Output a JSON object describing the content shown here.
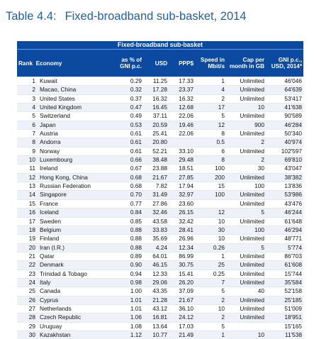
{
  "title": {
    "label": "Table 4.4:",
    "text": "Fixed-broadband sub-basket, 2014"
  },
  "table": {
    "caption": "Fixed-broadband sub-basket",
    "headers": {
      "rank": "Rank",
      "economy": "Economy",
      "gni_pct": "as % of GNI p.c.",
      "usd": "USD",
      "ppp": "PPP$",
      "speed": "Speed in Mbit/s",
      "cap": "Cap per month in GB",
      "gni_pc": "GNI p.c., USD, 2014*"
    },
    "rows": [
      {
        "rank": "1",
        "economy": "Kuwait",
        "gni": "0.29",
        "usd": "11.25",
        "ppp": "17.33",
        "speed": "1",
        "cap": "Unlimited",
        "gnipc": "46'046"
      },
      {
        "rank": "2",
        "economy": "Macao, China",
        "gni": "0.32",
        "usd": "17.28",
        "ppp": "23.37",
        "speed": "4",
        "cap": "Unlimited",
        "gnipc": "64'639"
      },
      {
        "rank": "3",
        "economy": "United States",
        "gni": "0.37",
        "usd": "16.32",
        "ppp": "16.32",
        "speed": "2",
        "cap": "Unlimited",
        "gnipc": "53'417"
      },
      {
        "rank": "4",
        "economy": "United Kingdom",
        "gni": "0.47",
        "usd": "16.45",
        "ppp": "12.68",
        "speed": "17",
        "cap": "10",
        "gnipc": "41'638"
      },
      {
        "rank": "5",
        "economy": "Switzerland",
        "gni": "0.49",
        "usd": "37.11",
        "ppp": "22.06",
        "speed": "5",
        "cap": "Unlimited",
        "gnipc": "90'589"
      },
      {
        "rank": "6",
        "economy": "Japan",
        "gni": "0.53",
        "usd": "20.59",
        "ppp": "19.46",
        "speed": "12",
        "cap": "900",
        "gnipc": "46'284"
      },
      {
        "rank": "7",
        "economy": "Austria",
        "gni": "0.61",
        "usd": "25.41",
        "ppp": "22.06",
        "speed": "8",
        "cap": "Unlimited",
        "gnipc": "50'340"
      },
      {
        "rank": "8",
        "economy": "Andorra",
        "gni": "0.61",
        "usd": "20.80",
        "ppp": "",
        "speed": "0.5",
        "cap": "2",
        "gnipc": "40'974"
      },
      {
        "rank": "9",
        "economy": "Norway",
        "gni": "0.61",
        "usd": "52.21",
        "ppp": "33.10",
        "speed": "6",
        "cap": "Unlimited",
        "gnipc": "102'597"
      },
      {
        "rank": "10",
        "economy": "Luxembourg",
        "gni": "0.66",
        "usd": "38.48",
        "ppp": "29.48",
        "speed": "8",
        "cap": "2",
        "gnipc": "69'810"
      },
      {
        "rank": "11",
        "economy": "Ireland",
        "gni": "0.67",
        "usd": "23.88",
        "ppp": "18.51",
        "speed": "100",
        "cap": "30",
        "gnipc": "43'047"
      },
      {
        "rank": "12",
        "economy": "Hong Kong, China",
        "gni": "0.68",
        "usd": "21.67",
        "ppp": "27.85",
        "speed": "200",
        "cap": "Unlimited",
        "gnipc": "38'382"
      },
      {
        "rank": "13",
        "economy": "Russian Federation",
        "gni": "0.68",
        "usd": "7.82",
        "ppp": "17.94",
        "speed": "15",
        "cap": "100",
        "gnipc": "13'836"
      },
      {
        "rank": "14",
        "economy": "Singapore",
        "gni": "0.70",
        "usd": "31.49",
        "ppp": "32.97",
        "speed": "100",
        "cap": "Unlimited",
        "gnipc": "53'986"
      },
      {
        "rank": "15",
        "economy": "France",
        "gni": "0.77",
        "usd": "27.86",
        "ppp": "23.60",
        "speed": "",
        "cap": "Unlimited",
        "gnipc": "43'476"
      },
      {
        "rank": "16",
        "economy": "Iceland",
        "gni": "0.84",
        "usd": "32.46",
        "ppp": "26.15",
        "speed": "12",
        "cap": "5",
        "gnipc": "46'244"
      },
      {
        "rank": "17",
        "economy": "Sweden",
        "gni": "0.85",
        "usd": "43.58",
        "ppp": "32.42",
        "speed": "10",
        "cap": "Unlimited",
        "gnipc": "61'648"
      },
      {
        "rank": "18",
        "economy": "Belgium",
        "gni": "0.88",
        "usd": "33.83",
        "ppp": "28.41",
        "speed": "30",
        "cap": "100",
        "gnipc": "46'294"
      },
      {
        "rank": "19",
        "economy": "Finland",
        "gni": "0.88",
        "usd": "35.69",
        "ppp": "26.96",
        "speed": "10",
        "cap": "Unlimited",
        "gnipc": "48'771"
      },
      {
        "rank": "20",
        "economy": "Iran (I.R.)",
        "gni": "0.88",
        "usd": "4.24",
        "ppp": "12.34",
        "speed": "0.26",
        "cap": "5",
        "gnipc": "5'774"
      },
      {
        "rank": "21",
        "economy": "Qatar",
        "gni": "0.89",
        "usd": "64.01",
        "ppp": "86.99",
        "speed": "1",
        "cap": "Unlimited",
        "gnipc": "86'703"
      },
      {
        "rank": "22",
        "economy": "Denmark",
        "gni": "0.90",
        "usd": "46.15",
        "ppp": "30.75",
        "speed": "25",
        "cap": "Unlimited",
        "gnipc": "61'608"
      },
      {
        "rank": "23",
        "economy": "Trinidad & Tobago",
        "gni": "0.94",
        "usd": "12.33",
        "ppp": "15.41",
        "speed": "0.25",
        "cap": "Unlimited",
        "gnipc": "15'744"
      },
      {
        "rank": "24",
        "economy": "Italy",
        "gni": "0.98",
        "usd": "29.06",
        "ppp": "26.20",
        "speed": "7",
        "cap": "Unlimited",
        "gnipc": "35'584"
      },
      {
        "rank": "25",
        "economy": "Canada",
        "gni": "1.00",
        "usd": "43.35",
        "ppp": "37.09",
        "speed": "5",
        "cap": "40",
        "gnipc": "52'158"
      },
      {
        "rank": "26",
        "economy": "Cyprus",
        "gni": "1.01",
        "usd": "21.28",
        "ppp": "21.67",
        "speed": "2",
        "cap": "Unlimited",
        "gnipc": "25'185"
      },
      {
        "rank": "27",
        "economy": "Netherlands",
        "gni": "1.01",
        "usd": "43.12",
        "ppp": "36.10",
        "speed": "10",
        "cap": "Unlimited",
        "gnipc": "51'009"
      },
      {
        "rank": "28",
        "economy": "Czech Republic",
        "gni": "1.06",
        "usd": "16.81",
        "ppp": "24.12",
        "speed": "2",
        "cap": "Unlimited",
        "gnipc": "18'951"
      },
      {
        "rank": "29",
        "economy": "Uruguay",
        "gni": "1.08",
        "usd": "13.64",
        "ppp": "17.03",
        "speed": "5",
        "cap": "",
        "gnipc": "15'165"
      },
      {
        "rank": "30",
        "economy": "Kazakhstan",
        "gni": "1.12",
        "usd": "10.77",
        "ppp": "21.49",
        "speed": "1",
        "cap": "10",
        "gnipc": "11'538"
      }
    ]
  }
}
